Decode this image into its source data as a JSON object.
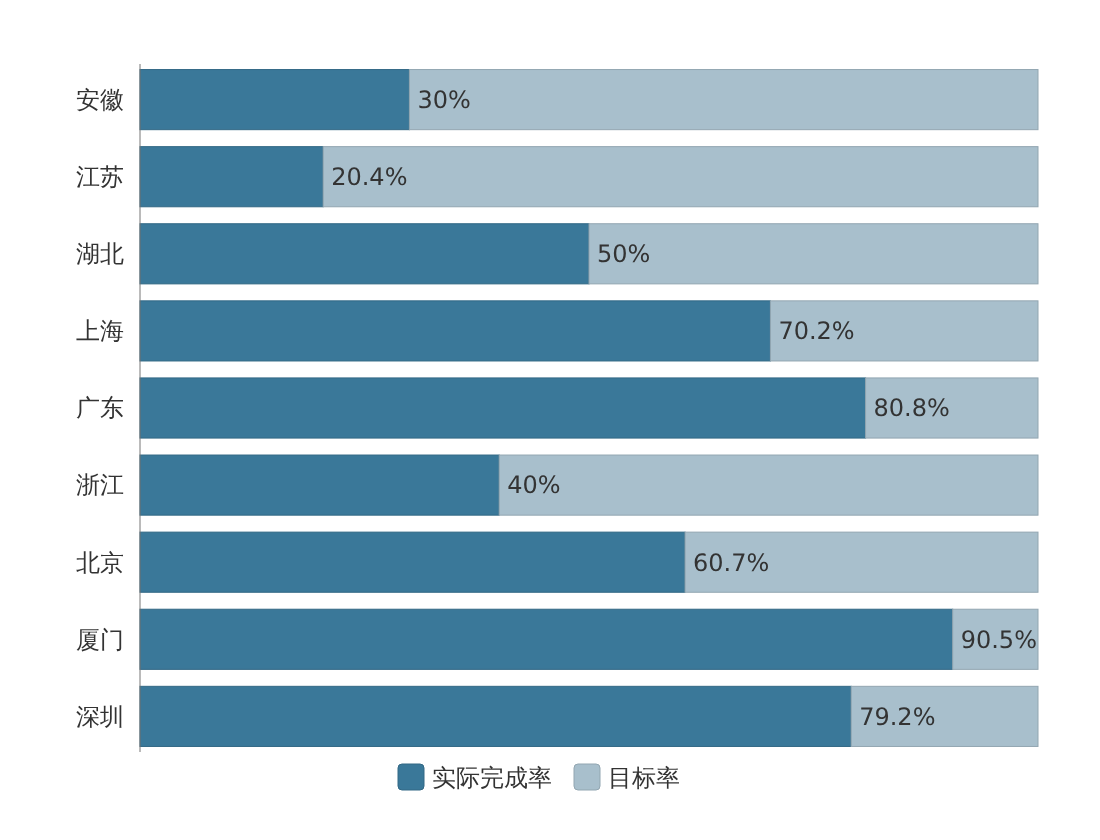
{
  "chart_data": {
    "type": "bar",
    "orientation": "horizontal",
    "stacked": true,
    "categories": [
      "安徽",
      "江苏",
      "湖北",
      "上海",
      "广东",
      "浙江",
      "北京",
      "厦门",
      "深圳"
    ],
    "xlim": [
      0,
      100
    ],
    "legend": "bottom",
    "tick_labels": "y",
    "series": [
      {
        "name": "实际完成率",
        "color": "#3a7899",
        "values": [
          30,
          20.4,
          50,
          70.2,
          80.8,
          40,
          60.7,
          90.5,
          79.2
        ],
        "value_labels": [
          "30%",
          "20.4%",
          "50%",
          "70.2%",
          "80.8%",
          "40%",
          "60.7%",
          "90.5%",
          "79.2%"
        ]
      },
      {
        "name": "目标率",
        "color": "#a8bfcc",
        "values": [
          70,
          79.6,
          50,
          29.8,
          19.2,
          60,
          39.3,
          9.5,
          20.8
        ]
      }
    ]
  }
}
